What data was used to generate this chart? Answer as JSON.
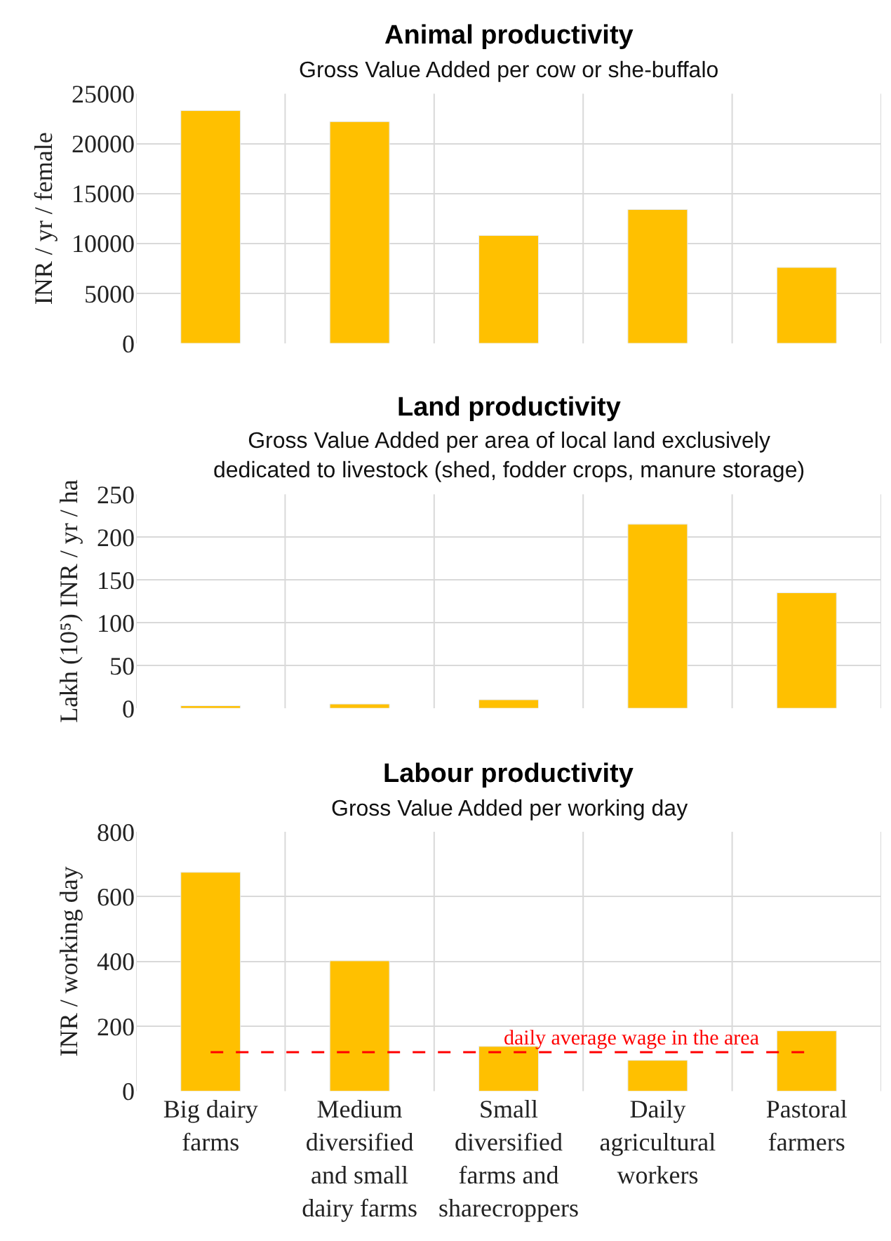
{
  "chart_data": [
    {
      "type": "bar",
      "title": "Animal productivity",
      "subtitle": "Gross Value Added per cow or she-buffalo",
      "ylabel": "INR / yr / female",
      "categories": [
        null,
        null,
        null,
        null,
        null
      ],
      "values": [
        23300,
        22200,
        10800,
        13400,
        7600
      ],
      "color": "#ffc000",
      "ylim": [
        0,
        25000
      ],
      "yticks": [
        0,
        5000,
        10000,
        15000,
        20000,
        25000
      ],
      "grid": true,
      "legend": false,
      "tick_labels": "y"
    },
    {
      "type": "bar",
      "title": "Land productivity",
      "subtitle": "Gross Value Added per area of local land exclusively\ndedicated to livestock (shed, fodder crops, manure storage)",
      "ylabel": "Lakh (10⁵) INR / yr / ha",
      "categories": [
        null,
        null,
        null,
        null,
        null
      ],
      "values": [
        3,
        5,
        10,
        215,
        135
      ],
      "color": "#ffc000",
      "ylim": [
        0,
        250
      ],
      "yticks": [
        0,
        50,
        100,
        150,
        200,
        250
      ],
      "grid": true,
      "legend": false,
      "tick_labels": "y"
    },
    {
      "type": "bar",
      "title": "Labour productivity",
      "subtitle": "Gross Value Added per working day",
      "ylabel": "INR / working day",
      "categories": [
        "Big dairy farms",
        "Medium diversified and small dairy farms",
        "Small diversified farms and sharecroppers",
        "Daily agricultural workers",
        "Pastoral farmers"
      ],
      "values": [
        675,
        402,
        138,
        95,
        186
      ],
      "color": "#ffc000",
      "ylim": [
        0,
        800
      ],
      "yticks": [
        0,
        200,
        400,
        600,
        800
      ],
      "grid": true,
      "legend": false,
      "ref_lines": [
        {
          "axis": "y",
          "value": 120,
          "label": "daily average wage in the area",
          "color": "#ff0000",
          "line_style": "dashed"
        }
      ]
    }
  ]
}
